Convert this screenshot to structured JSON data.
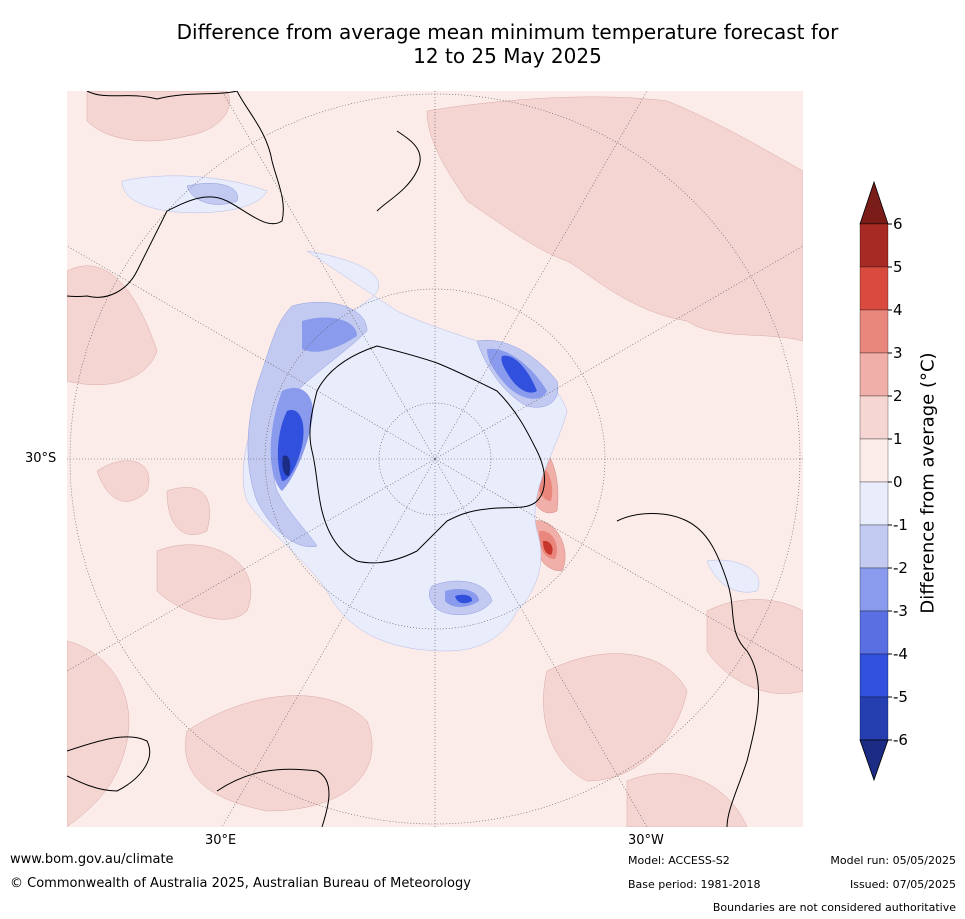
{
  "title_line1": "Difference from average mean minimum temperature forecast for",
  "title_line2": "12 to 25 May 2025",
  "lat_label": "30°S",
  "lon_labels": {
    "east": "30°E",
    "west": "30°W"
  },
  "colorbar": {
    "title": "Difference from average (°C)",
    "ticks": [
      "6",
      "5",
      "4",
      "3",
      "2",
      "1",
      "0",
      "-1",
      "-2",
      "-3",
      "-4",
      "-5",
      "-6"
    ],
    "colors": [
      "#7a1c18",
      "#a82a24",
      "#d94b3e",
      "#e9877c",
      "#f0b0a9",
      "#f6d6d3",
      "#fbecea",
      "#e8ecfb",
      "#c2caf1",
      "#8a9aec",
      "#5a6fe2",
      "#3050dd",
      "#263fb0",
      "#1c2b84"
    ]
  },
  "footer": {
    "website": "www.bom.gov.au/climate",
    "copyright": "© Commonwealth of Australia 2025, Australian Bureau of Meteorology",
    "model": "Model: ACCESS-S2",
    "base_period": "Base period: 1981-2018",
    "model_run": "Model run: 05/05/2025",
    "issued": "Issued: 07/05/2025",
    "disclaimer": "Boundaries are not considered authoritative"
  }
}
